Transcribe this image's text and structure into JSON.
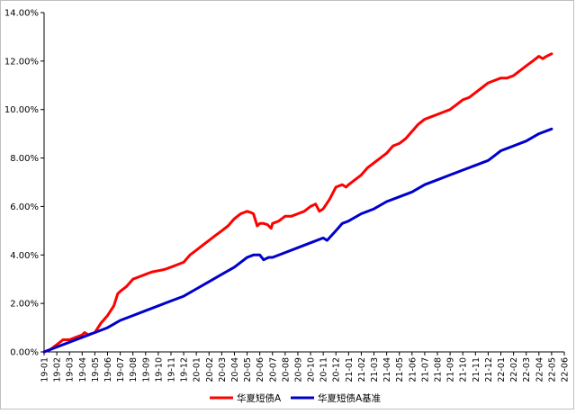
{
  "chart_data": {
    "type": "line",
    "title": "",
    "xlabel": "",
    "ylabel": "",
    "ylim": [
      0,
      0.14
    ],
    "y_ticks": [
      "0.00%",
      "2.00%",
      "4.00%",
      "6.00%",
      "8.00%",
      "10.00%",
      "12.00%",
      "14.00%"
    ],
    "grid": false,
    "legend_position": "bottom",
    "x_ticks": [
      "19-01",
      "19-02",
      "19-03",
      "19-04",
      "19-05",
      "19-06",
      "19-07",
      "19-08",
      "19-09",
      "19-10",
      "19-11",
      "19-12",
      "20-01",
      "20-02",
      "20-03",
      "20-04",
      "20-05",
      "20-06",
      "20-07",
      "20-08",
      "20-09",
      "20-10",
      "20-11",
      "20-12",
      "21-01",
      "21-02",
      "21-03",
      "21-04",
      "21-05",
      "21-06",
      "21-07",
      "21-08",
      "21-09",
      "21-10",
      "21-11",
      "21-12",
      "22-01",
      "22-02",
      "22-03",
      "22-04",
      "22-05",
      "22-06"
    ],
    "series": [
      {
        "name": "华夏短债A",
        "color": "#ff0000",
        "points": [
          [
            0.0,
            0.0
          ],
          [
            0.5,
            0.001
          ],
          [
            1.0,
            0.003
          ],
          [
            1.5,
            0.005
          ],
          [
            2.0,
            0.005
          ],
          [
            2.5,
            0.006
          ],
          [
            3.0,
            0.007
          ],
          [
            3.2,
            0.008
          ],
          [
            3.5,
            0.007
          ],
          [
            3.7,
            0.0075
          ],
          [
            4.0,
            0.008
          ],
          [
            4.5,
            0.012
          ],
          [
            5.0,
            0.015
          ],
          [
            5.5,
            0.019
          ],
          [
            5.8,
            0.024
          ],
          [
            6.0,
            0.025
          ],
          [
            6.5,
            0.027
          ],
          [
            7.0,
            0.03
          ],
          [
            7.5,
            0.031
          ],
          [
            8.0,
            0.032
          ],
          [
            8.5,
            0.033
          ],
          [
            9.0,
            0.0335
          ],
          [
            9.5,
            0.034
          ],
          [
            10.0,
            0.035
          ],
          [
            10.5,
            0.036
          ],
          [
            11.0,
            0.037
          ],
          [
            11.5,
            0.04
          ],
          [
            12.0,
            0.042
          ],
          [
            12.5,
            0.044
          ],
          [
            13.0,
            0.046
          ],
          [
            13.5,
            0.048
          ],
          [
            14.0,
            0.05
          ],
          [
            14.5,
            0.052
          ],
          [
            15.0,
            0.055
          ],
          [
            15.5,
            0.057
          ],
          [
            16.0,
            0.058
          ],
          [
            16.3,
            0.0575
          ],
          [
            16.5,
            0.057
          ],
          [
            16.8,
            0.052
          ],
          [
            17.0,
            0.053
          ],
          [
            17.3,
            0.053
          ],
          [
            17.6,
            0.0525
          ],
          [
            17.9,
            0.051
          ],
          [
            18.0,
            0.053
          ],
          [
            18.5,
            0.054
          ],
          [
            19.0,
            0.056
          ],
          [
            19.5,
            0.056
          ],
          [
            20.0,
            0.057
          ],
          [
            20.5,
            0.058
          ],
          [
            21.0,
            0.06
          ],
          [
            21.4,
            0.061
          ],
          [
            21.7,
            0.058
          ],
          [
            22.0,
            0.059
          ],
          [
            22.5,
            0.063
          ],
          [
            23.0,
            0.068
          ],
          [
            23.5,
            0.069
          ],
          [
            23.8,
            0.068
          ],
          [
            24.0,
            0.069
          ],
          [
            24.5,
            0.071
          ],
          [
            25.0,
            0.073
          ],
          [
            25.5,
            0.076
          ],
          [
            26.0,
            0.078
          ],
          [
            26.5,
            0.08
          ],
          [
            27.0,
            0.082
          ],
          [
            27.5,
            0.085
          ],
          [
            28.0,
            0.086
          ],
          [
            28.5,
            0.088
          ],
          [
            29.0,
            0.091
          ],
          [
            29.5,
            0.094
          ],
          [
            30.0,
            0.096
          ],
          [
            30.5,
            0.097
          ],
          [
            31.0,
            0.098
          ],
          [
            31.5,
            0.099
          ],
          [
            32.0,
            0.1
          ],
          [
            32.5,
            0.102
          ],
          [
            33.0,
            0.104
          ],
          [
            33.5,
            0.105
          ],
          [
            34.0,
            0.107
          ],
          [
            34.5,
            0.109
          ],
          [
            35.0,
            0.111
          ],
          [
            35.5,
            0.112
          ],
          [
            36.0,
            0.113
          ],
          [
            36.5,
            0.113
          ],
          [
            37.0,
            0.114
          ],
          [
            37.5,
            0.116
          ],
          [
            38.0,
            0.118
          ],
          [
            38.5,
            0.12
          ],
          [
            39.0,
            0.122
          ],
          [
            39.3,
            0.121
          ],
          [
            39.6,
            0.122
          ],
          [
            40.0,
            0.123
          ]
        ]
      },
      {
        "name": "华夏短债A基准",
        "color": "#0000cc",
        "points": [
          [
            0.0,
            0.0
          ],
          [
            1.0,
            0.002
          ],
          [
            2.0,
            0.004
          ],
          [
            3.0,
            0.006
          ],
          [
            4.0,
            0.008
          ],
          [
            5.0,
            0.01
          ],
          [
            6.0,
            0.013
          ],
          [
            7.0,
            0.015
          ],
          [
            8.0,
            0.017
          ],
          [
            9.0,
            0.019
          ],
          [
            10.0,
            0.021
          ],
          [
            11.0,
            0.023
          ],
          [
            12.0,
            0.026
          ],
          [
            13.0,
            0.029
          ],
          [
            14.0,
            0.032
          ],
          [
            15.0,
            0.035
          ],
          [
            15.5,
            0.037
          ],
          [
            16.0,
            0.039
          ],
          [
            16.5,
            0.04
          ],
          [
            17.0,
            0.04
          ],
          [
            17.3,
            0.038
          ],
          [
            17.7,
            0.039
          ],
          [
            18.0,
            0.039
          ],
          [
            19.0,
            0.041
          ],
          [
            20.0,
            0.043
          ],
          [
            21.0,
            0.045
          ],
          [
            22.0,
            0.047
          ],
          [
            22.3,
            0.046
          ],
          [
            23.0,
            0.05
          ],
          [
            23.5,
            0.053
          ],
          [
            24.0,
            0.054
          ],
          [
            25.0,
            0.057
          ],
          [
            26.0,
            0.059
          ],
          [
            27.0,
            0.062
          ],
          [
            28.0,
            0.064
          ],
          [
            29.0,
            0.066
          ],
          [
            30.0,
            0.069
          ],
          [
            31.0,
            0.071
          ],
          [
            32.0,
            0.073
          ],
          [
            33.0,
            0.075
          ],
          [
            34.0,
            0.077
          ],
          [
            35.0,
            0.079
          ],
          [
            35.5,
            0.081
          ],
          [
            36.0,
            0.083
          ],
          [
            36.5,
            0.084
          ],
          [
            37.0,
            0.085
          ],
          [
            38.0,
            0.087
          ],
          [
            39.0,
            0.09
          ],
          [
            40.0,
            0.092
          ]
        ]
      }
    ]
  }
}
